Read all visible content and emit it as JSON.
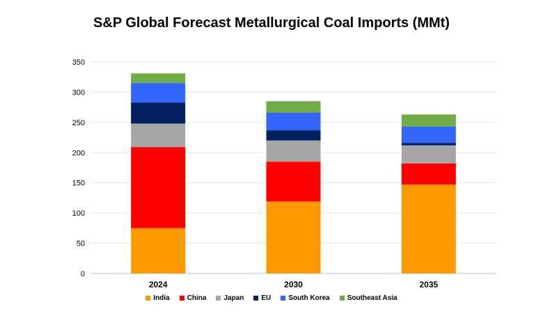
{
  "chart_data": {
    "type": "bar",
    "stacked": true,
    "title": "S&P Global Forecast Metallurgical Coal Imports (MMt)",
    "categories": [
      "2024",
      "2030",
      "2035"
    ],
    "ylim": [
      0,
      350
    ],
    "yticks": [
      0,
      50,
      100,
      150,
      200,
      250,
      300,
      350
    ],
    "grid": true,
    "legend_position": "bottom",
    "series": [
      {
        "name": "India",
        "color": "#FF9900",
        "values": [
          75,
          119,
          147
        ]
      },
      {
        "name": "China",
        "color": "#FF0000",
        "values": [
          134,
          66,
          35
        ]
      },
      {
        "name": "Japan",
        "color": "#A6A6A6",
        "values": [
          39,
          35,
          30
        ]
      },
      {
        "name": "EU",
        "color": "#002060",
        "values": [
          35,
          17,
          4
        ]
      },
      {
        "name": "South Korea",
        "color": "#3366FF",
        "values": [
          32,
          29,
          27
        ]
      },
      {
        "name": "Southeast Asia",
        "color": "#70AD47",
        "values": [
          16,
          19,
          20
        ]
      }
    ]
  }
}
